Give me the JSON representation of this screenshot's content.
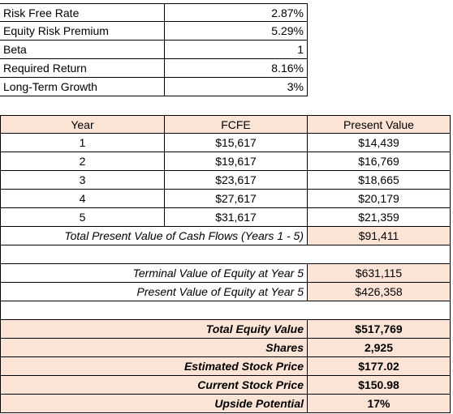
{
  "inputs": [
    {
      "label": "Risk Free Rate",
      "value": "2.87%"
    },
    {
      "label": "Equity Risk Premium",
      "value": "5.29%"
    },
    {
      "label": "Beta",
      "value": "1"
    },
    {
      "label": "Required Return",
      "value": "8.16%"
    },
    {
      "label": "Long-Term Growth",
      "value": "3%"
    }
  ],
  "cashflow_table": {
    "headers": [
      "Year",
      "FCFE",
      "Present Value"
    ],
    "rows": [
      {
        "year": "1",
        "fcfe": "$15,617",
        "pv": "$14,439"
      },
      {
        "year": "2",
        "fcfe": "$19,617",
        "pv": "$16,769"
      },
      {
        "year": "3",
        "fcfe": "$23,617",
        "pv": "$18,665"
      },
      {
        "year": "4",
        "fcfe": "$27,617",
        "pv": "$20,179"
      },
      {
        "year": "5",
        "fcfe": "$31,617",
        "pv": "$21,359"
      }
    ],
    "total_label": "Total Present Value of Cash Flows (Years 1 - 5)",
    "total_value": "$91,411"
  },
  "terminal": {
    "tv_label": "Terminal Value of Equity at Year 5",
    "tv_value": "$631,115",
    "pv_label": "Present Value of Equity at Year 5",
    "pv_value": "$426,358"
  },
  "summary": [
    {
      "label": "Total Equity Value",
      "value": "$517,769"
    },
    {
      "label": "Shares",
      "value": "2,925"
    },
    {
      "label": "Estimated Stock Price",
      "value": "$177.02"
    },
    {
      "label": "Current Stock Price",
      "value": "$150.98"
    },
    {
      "label": "Upside Potential",
      "value": "17%"
    }
  ]
}
